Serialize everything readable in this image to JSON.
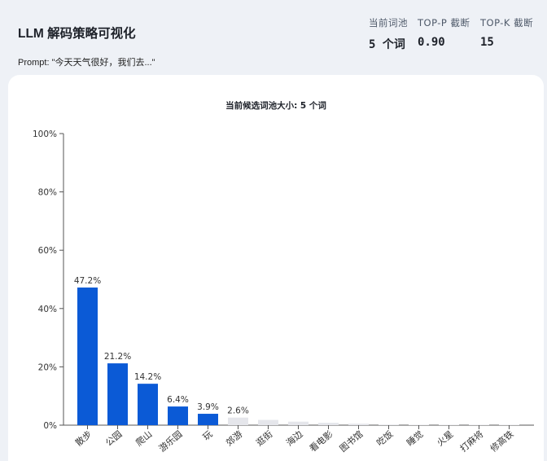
{
  "header": {
    "title": "LLM 解码策略可视化",
    "prompt": "Prompt: \"今天天气很好，我们去...\""
  },
  "stats": {
    "candidates_label": "当前词池",
    "candidates_value": "5 个词",
    "top_p_label": "TOP-P 截断",
    "top_p_value": "0.90",
    "top_k_label": "TOP-K 截断",
    "top_k_value": "15"
  },
  "chart_title": "当前候选词池大小: 5 个词",
  "colors": {
    "selected": "#0b5ad6",
    "excluded": "#e5e6eb",
    "background": "#eef1f6"
  },
  "chart_data": {
    "type": "bar",
    "title": "当前候选词池大小: 5 个词",
    "categories": [
      "散步",
      "公园",
      "爬山",
      "游乐园",
      "玩",
      "郊游",
      "逛街",
      "海边",
      "看电影",
      "图书馆",
      "吃饭",
      "睡觉",
      "火星",
      "打麻将",
      "修高铁"
    ],
    "values": [
      47.2,
      21.2,
      14.2,
      6.4,
      3.9,
      2.6,
      1.8,
      1.2,
      0.8,
      0.5,
      0.2,
      0.1,
      0.05,
      0.03,
      0.02
    ],
    "labels": [
      "47.2%",
      "21.2%",
      "14.2%",
      "6.4%",
      "3.9%",
      "2.6%",
      "",
      "",
      "",
      "",
      "",
      "",
      "",
      "",
      ""
    ],
    "selected": [
      true,
      true,
      true,
      true,
      true,
      false,
      false,
      false,
      false,
      false,
      false,
      false,
      false,
      false,
      false
    ],
    "ylim": [
      0,
      100
    ],
    "yticks": [
      0,
      20,
      40,
      60,
      80,
      100
    ],
    "ytick_labels": [
      "0%",
      "20%",
      "40%",
      "60%",
      "80%",
      "100%"
    ],
    "xlabel": "",
    "ylabel": "",
    "grid": false,
    "legend": "none"
  }
}
